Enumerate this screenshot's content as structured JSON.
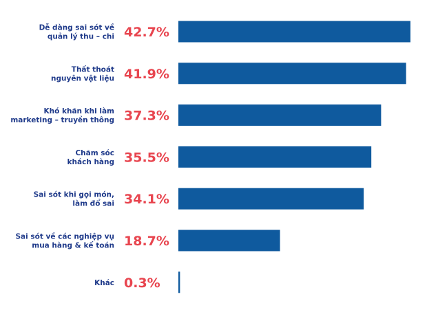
{
  "chart_data": {
    "type": "bar",
    "orientation": "horizontal",
    "categories": [
      [
        "Dễ dàng sai sót về",
        "quản lý thu – chi"
      ],
      [
        "Thất thoát",
        "nguyên vật liệu"
      ],
      [
        "Khó khăn khi làm",
        "marketing – truyền thông"
      ],
      [
        "Chăm sóc",
        "khách hàng"
      ],
      [
        "Sai sót khi gọi món,",
        "làm đổ sai"
      ],
      [
        "Sai sót về các nghiệp vụ",
        "mua hàng & kế toán"
      ],
      [
        "Khác"
      ]
    ],
    "values": [
      42.7,
      41.9,
      37.3,
      35.5,
      34.1,
      18.7,
      0.3
    ],
    "value_labels": [
      "42.7%",
      "41.9%",
      "37.3%",
      "35.5%",
      "34.1%",
      "18.7%",
      "0.3%"
    ],
    "xlim": [
      0,
      42.7
    ],
    "grid": false,
    "legend": "none"
  },
  "colors": {
    "bar": "#0f5a9e",
    "value_label": "#e8454f",
    "category_label": "#1f3a8a",
    "background": "#ffffff"
  }
}
